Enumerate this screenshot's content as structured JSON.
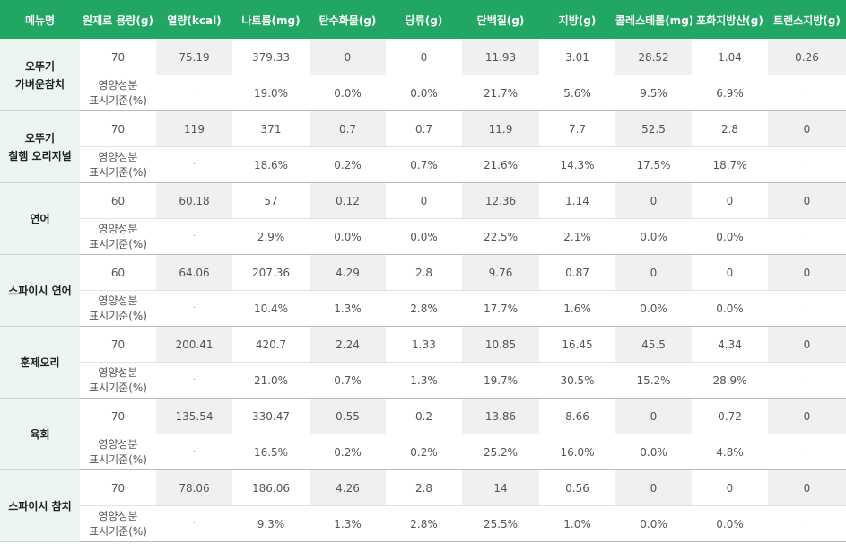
{
  "headers": [
    "메뉴명",
    "원재료 용량(g)",
    "열량(kcal)",
    "나트륨(mg)",
    "탄수화물(g)",
    "당류(g)",
    "단백질(g)",
    "지방(g)",
    "콜레스테롤(mg)",
    "포화지방산(g)",
    "트랜스지방(g)"
  ],
  "pct_label": [
    "영양성분",
    "표시기준(%)"
  ],
  "rows": [
    {
      "name": [
        "오뚜기",
        "가벼운참치"
      ],
      "values": [
        "70",
        "75.19",
        "379.33",
        "0",
        "0",
        "11.93",
        "3.01",
        "28.52",
        "1.04",
        "0.26"
      ],
      "pct": [
        "·",
        "19.0%",
        "0.0%",
        "0.0%",
        "21.7%",
        "5.6%",
        "9.5%",
        "6.9%",
        "·"
      ]
    },
    {
      "name": [
        "오뚜기",
        "칠햄 오리지널"
      ],
      "values": [
        "70",
        "119",
        "371",
        "0.7",
        "0.7",
        "11.9",
        "7.7",
        "52.5",
        "2.8",
        "0"
      ],
      "pct": [
        "·",
        "18.6%",
        "0.2%",
        "0.7%",
        "21.6%",
        "14.3%",
        "17.5%",
        "18.7%",
        "·"
      ]
    },
    {
      "name": [
        "연어"
      ],
      "values": [
        "60",
        "60.18",
        "57",
        "0.12",
        "0",
        "12.36",
        "1.14",
        "0",
        "0",
        "0"
      ],
      "pct": [
        "·",
        "2.9%",
        "0.0%",
        "0.0%",
        "22.5%",
        "2.1%",
        "0.0%",
        "0.0%",
        "·"
      ]
    },
    {
      "name": [
        "스파이시 연어"
      ],
      "values": [
        "60",
        "64.06",
        "207.36",
        "4.29",
        "2.8",
        "9.76",
        "0.87",
        "0",
        "0",
        "0"
      ],
      "pct": [
        "·",
        "10.4%",
        "1.3%",
        "2.8%",
        "17.7%",
        "1.6%",
        "0.0%",
        "0.0%",
        "·"
      ]
    },
    {
      "name": [
        "훈제오리"
      ],
      "values": [
        "70",
        "200.41",
        "420.7",
        "2.24",
        "1.33",
        "10.85",
        "16.45",
        "45.5",
        "4.34",
        "0"
      ],
      "pct": [
        "·",
        "21.0%",
        "0.7%",
        "1.3%",
        "19.7%",
        "30.5%",
        "15.2%",
        "28.9%",
        "·"
      ]
    },
    {
      "name": [
        "육회"
      ],
      "values": [
        "70",
        "135.54",
        "330.47",
        "0.55",
        "0.2",
        "13.86",
        "8.66",
        "0",
        "0.72",
        "0"
      ],
      "pct": [
        "·",
        "16.5%",
        "0.2%",
        "0.2%",
        "25.2%",
        "16.0%",
        "0.0%",
        "4.8%",
        "·"
      ]
    },
    {
      "name": [
        "스파이시 참치"
      ],
      "values": [
        "70",
        "78.06",
        "186.06",
        "4.26",
        "2.8",
        "14",
        "0.56",
        "0",
        "0",
        "0"
      ],
      "pct": [
        "·",
        "9.3%",
        "1.3%",
        "2.8%",
        "25.5%",
        "1.0%",
        "0.0%",
        "0.0%",
        "·"
      ]
    }
  ]
}
